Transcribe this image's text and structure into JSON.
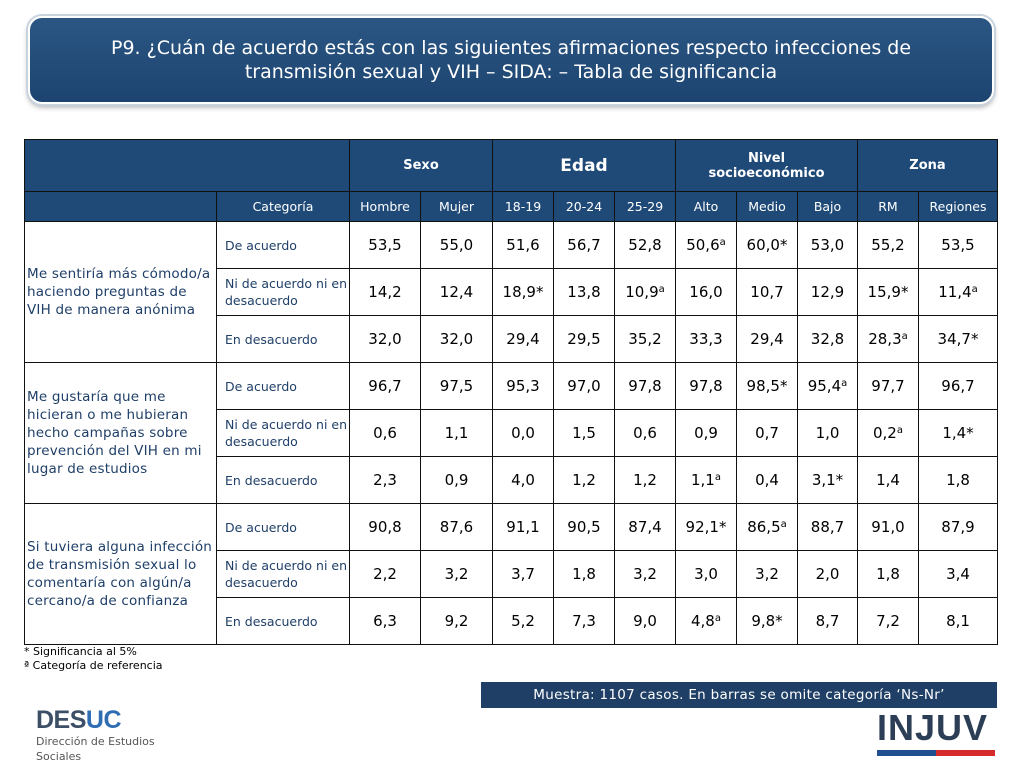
{
  "title": {
    "line1": "P9. ¿Cuán de acuerdo estás con las siguientes afirmaciones respecto infecciones de",
    "line2": "transmisión sexual y VIH – SIDA: – Tabla de significancia"
  },
  "table": {
    "groups": {
      "sexo": "Sexo",
      "edad": "Edad",
      "nivel_line1": "Nivel",
      "nivel_line2": "socioeconómico",
      "zona": "Zona"
    },
    "category_header": "Categoría",
    "columns": [
      "Hombre",
      "Mujer",
      "18-19",
      "20-24",
      "25-29",
      "Alto",
      "Medio",
      "Bajo",
      "RM",
      "Regiones"
    ],
    "questions": [
      {
        "text": "Me sentiría más cómodo/a haciendo preguntas de VIH de manera anónima",
        "rows": [
          {
            "category": "De acuerdo",
            "values": [
              "53,5",
              "55,0",
              "51,6",
              "56,7",
              "52,8",
              "50,6ª",
              "60,0*",
              "53,0",
              "55,2",
              "53,5"
            ]
          },
          {
            "category": "Ni de acuerdo ni en desacuerdo",
            "values": [
              "14,2",
              "12,4",
              "18,9*",
              "13,8",
              "10,9ª",
              "16,0",
              "10,7",
              "12,9",
              "15,9*",
              "11,4ª"
            ]
          },
          {
            "category": "En desacuerdo",
            "values": [
              "32,0",
              "32,0",
              "29,4",
              "29,5",
              "35,2",
              "33,3",
              "29,4",
              "32,8",
              "28,3ª",
              "34,7*"
            ]
          }
        ]
      },
      {
        "text": "Me gustaría que me hicieran o me hubieran hecho campañas sobre prevención del VIH en mi lugar de estudios",
        "rows": [
          {
            "category": "De acuerdo",
            "values": [
              "96,7",
              "97,5",
              "95,3",
              "97,0",
              "97,8",
              "97,8",
              "98,5*",
              "95,4ª",
              "97,7",
              "96,7"
            ]
          },
          {
            "category": "Ni de acuerdo ni en desacuerdo",
            "values": [
              "0,6",
              "1,1",
              "0,0",
              "1,5",
              "0,6",
              "0,9",
              "0,7",
              "1,0",
              "0,2ª",
              "1,4*"
            ]
          },
          {
            "category": "En desacuerdo",
            "values": [
              "2,3",
              "0,9",
              "4,0",
              "1,2",
              "1,2",
              "1,1ª",
              "0,4",
              "3,1*",
              "1,4",
              "1,8"
            ]
          }
        ]
      },
      {
        "text": "Si tuviera alguna infección de transmisión sexual lo comentaría con algún/a cercano/a de confianza",
        "rows": [
          {
            "category": "De acuerdo",
            "values": [
              "90,8",
              "87,6",
              "91,1",
              "90,5",
              "87,4",
              "92,1*",
              "86,5ª",
              "88,7",
              "91,0",
              "87,9"
            ]
          },
          {
            "category": "Ni de acuerdo ni en desacuerdo",
            "values": [
              "2,2",
              "3,2",
              "3,7",
              "1,8",
              "3,2",
              "3,0",
              "3,2",
              "2,0",
              "1,8",
              "3,4"
            ]
          },
          {
            "category": "En desacuerdo",
            "values": [
              "6,3",
              "9,2",
              "5,2",
              "7,3",
              "9,0",
              "4,8ª",
              "9,8*",
              "8,7",
              "7,2",
              "8,1"
            ]
          }
        ]
      }
    ]
  },
  "notes": {
    "significance": "* Significancia al 5%",
    "reference": "ª Categoría de referencia"
  },
  "sample": "Muestra: 1107 casos. En barras se omite categoría ‘Ns-Nr’",
  "logos": {
    "desuc_part1": "DES",
    "desuc_part2": "UC",
    "desuc_sub_line1": "Dirección de Estudios",
    "desuc_sub_line2": "Sociales",
    "injuv": "INJUV",
    "injuv_colors": [
      "#1f4f8f",
      "#d52b2b"
    ]
  }
}
